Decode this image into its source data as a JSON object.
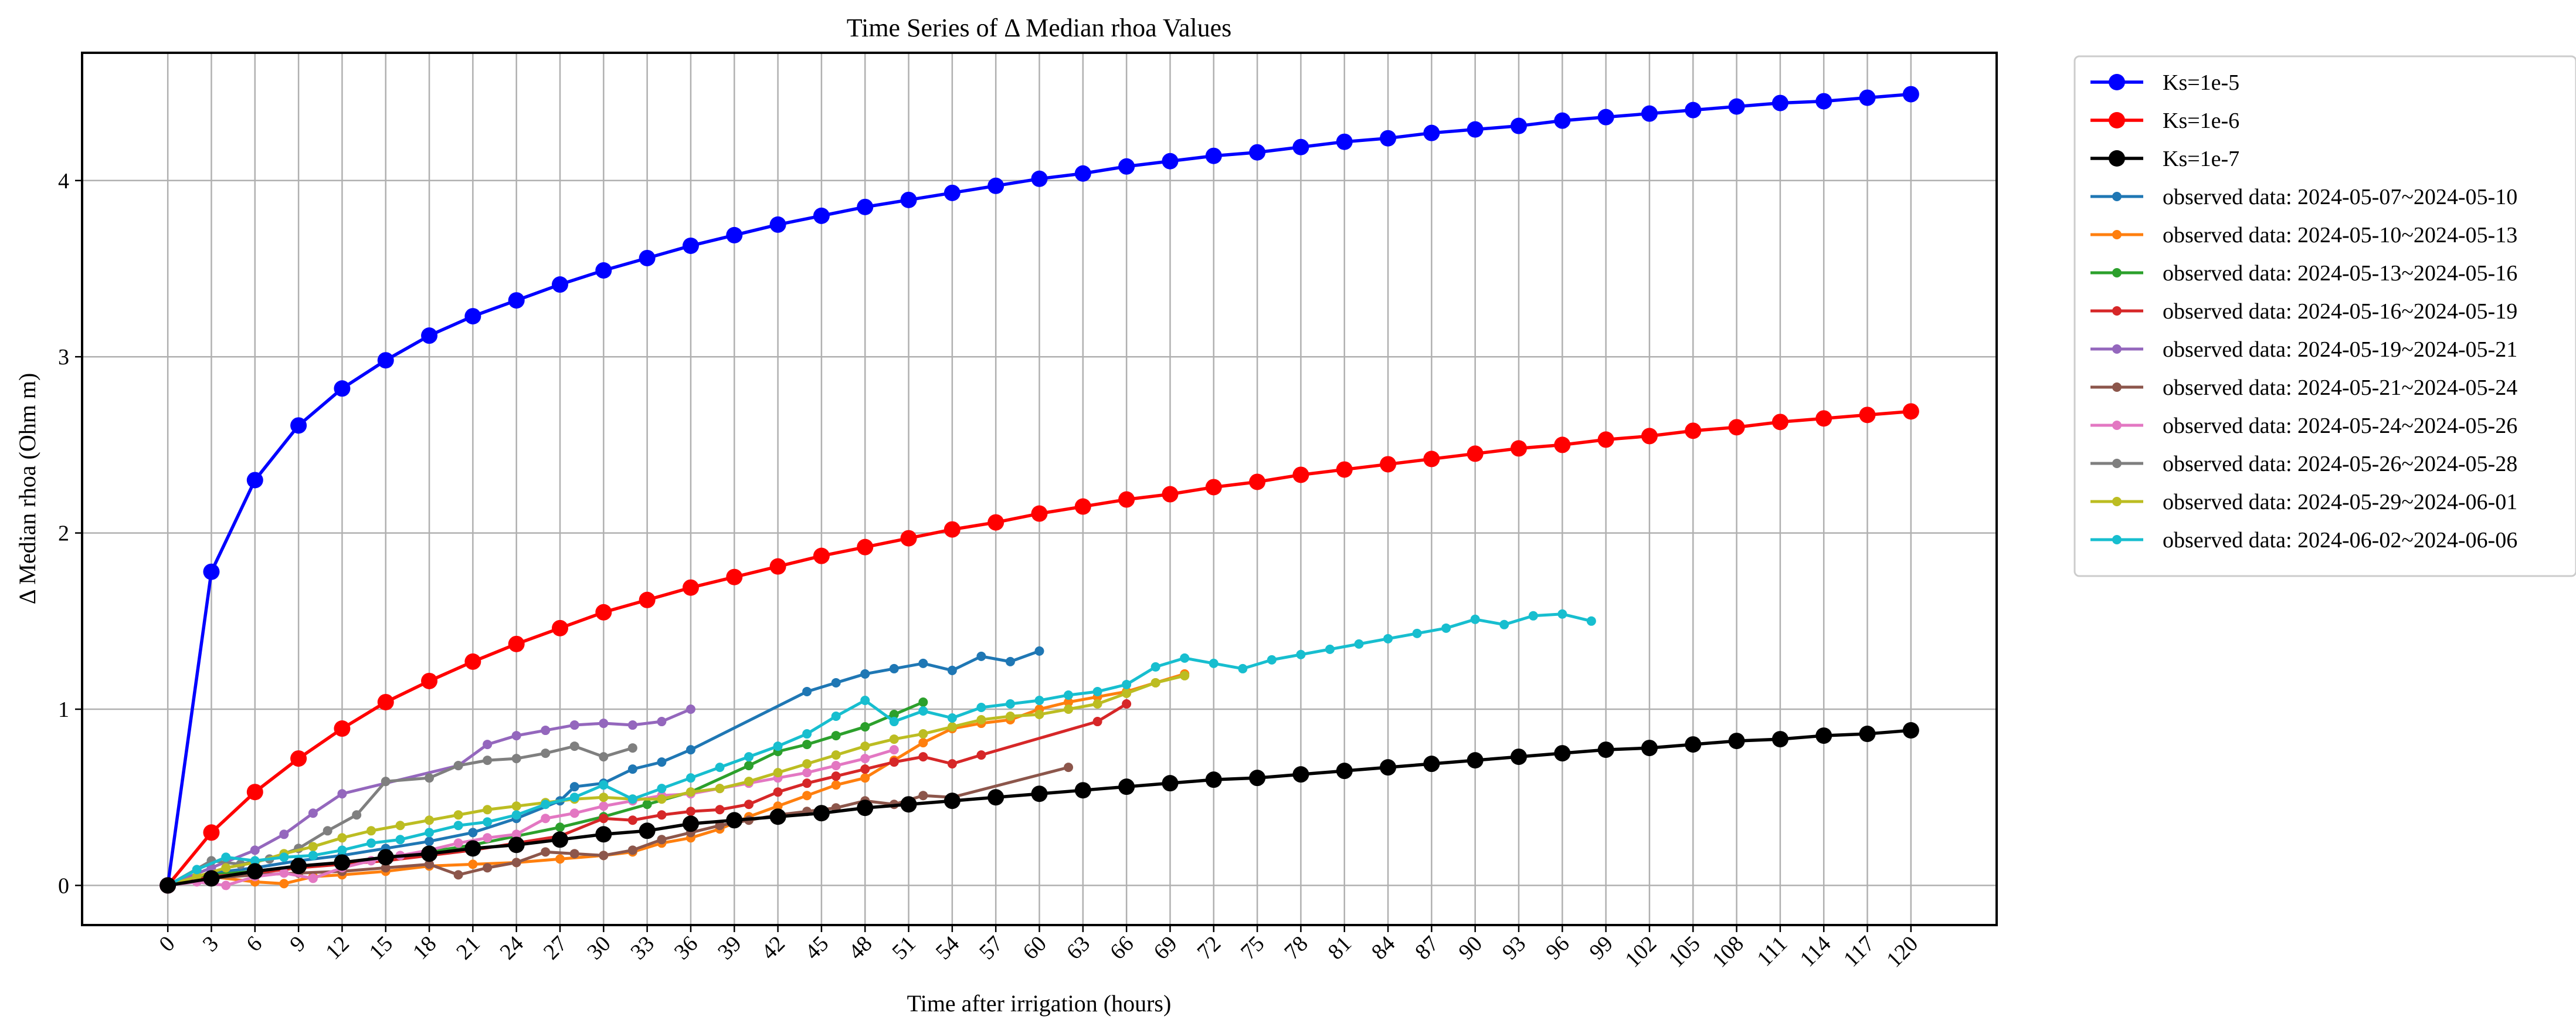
{
  "chart_data": {
    "type": "line",
    "title": "Time Series of Δ Median rhoa Values",
    "xlabel": "Time after irrigation (hours)",
    "ylabel": "Δ Median rhoa (Ohm m)",
    "xlim": [
      -5.9,
      125.9
    ],
    "ylim": [
      -0.225,
      4.725
    ],
    "xticks": [
      0,
      3,
      6,
      9,
      12,
      15,
      18,
      21,
      24,
      27,
      30,
      33,
      36,
      39,
      42,
      45,
      48,
      51,
      54,
      57,
      60,
      63,
      66,
      69,
      72,
      75,
      78,
      81,
      84,
      87,
      90,
      93,
      96,
      99,
      102,
      105,
      108,
      111,
      114,
      117,
      120
    ],
    "yticks": [
      0,
      1,
      2,
      3,
      4
    ],
    "grid": true,
    "legend_placement": "outside upper right",
    "series": [
      {
        "name": "Ks=1e-5",
        "color": "#0000ff",
        "marker": "large",
        "x": [
          0,
          3,
          6,
          9,
          12,
          15,
          18,
          21,
          24,
          27,
          30,
          33,
          36,
          39,
          42,
          45,
          48,
          51,
          54,
          57,
          60,
          63,
          66,
          69,
          72,
          75,
          78,
          81,
          84,
          87,
          90,
          93,
          96,
          99,
          102,
          105,
          108,
          111,
          114,
          117,
          120
        ],
        "y": [
          0,
          1.78,
          2.3,
          2.61,
          2.82,
          2.98,
          3.12,
          3.23,
          3.32,
          3.41,
          3.49,
          3.56,
          3.63,
          3.69,
          3.75,
          3.8,
          3.85,
          3.89,
          3.93,
          3.97,
          4.01,
          4.04,
          4.08,
          4.11,
          4.14,
          4.16,
          4.19,
          4.22,
          4.24,
          4.27,
          4.29,
          4.31,
          4.34,
          4.36,
          4.38,
          4.4,
          4.42,
          4.44,
          4.45,
          4.47,
          4.49
        ]
      },
      {
        "name": "Ks=1e-6",
        "color": "#ff0000",
        "marker": "large",
        "x": [
          0,
          3,
          6,
          9,
          12,
          15,
          18,
          21,
          24,
          27,
          30,
          33,
          36,
          39,
          42,
          45,
          48,
          51,
          54,
          57,
          60,
          63,
          66,
          69,
          72,
          75,
          78,
          81,
          84,
          87,
          90,
          93,
          96,
          99,
          102,
          105,
          108,
          111,
          114,
          117,
          120
        ],
        "y": [
          0,
          0.3,
          0.53,
          0.72,
          0.89,
          1.04,
          1.16,
          1.27,
          1.37,
          1.46,
          1.55,
          1.62,
          1.69,
          1.75,
          1.81,
          1.87,
          1.92,
          1.97,
          2.02,
          2.06,
          2.11,
          2.15,
          2.19,
          2.22,
          2.26,
          2.29,
          2.33,
          2.36,
          2.39,
          2.42,
          2.45,
          2.48,
          2.5,
          2.53,
          2.55,
          2.58,
          2.6,
          2.63,
          2.65,
          2.67,
          2.69
        ]
      },
      {
        "name": "Ks=1e-7",
        "color": "#000000",
        "marker": "large",
        "x": [
          0,
          3,
          6,
          9,
          12,
          15,
          18,
          21,
          24,
          27,
          30,
          33,
          36,
          39,
          42,
          45,
          48,
          51,
          54,
          57,
          60,
          63,
          66,
          69,
          72,
          75,
          78,
          81,
          84,
          87,
          90,
          93,
          96,
          99,
          102,
          105,
          108,
          111,
          114,
          117,
          120
        ],
        "y": [
          0,
          0.04,
          0.08,
          0.11,
          0.13,
          0.16,
          0.18,
          0.21,
          0.23,
          0.26,
          0.29,
          0.31,
          0.35,
          0.37,
          0.39,
          0.41,
          0.44,
          0.46,
          0.48,
          0.5,
          0.52,
          0.54,
          0.56,
          0.58,
          0.6,
          0.61,
          0.63,
          0.65,
          0.67,
          0.69,
          0.71,
          0.73,
          0.75,
          0.77,
          0.78,
          0.8,
          0.82,
          0.83,
          0.85,
          0.86,
          0.88
        ]
      },
      {
        "name": "observed data: 2024-05-07~2024-05-10",
        "color": "#1f77b4",
        "marker": "small",
        "x": [
          0,
          3,
          6,
          9,
          12,
          15,
          18,
          21,
          24,
          27,
          28,
          30,
          32,
          34,
          36,
          44,
          46,
          48,
          50,
          52,
          54,
          56,
          58,
          60
        ],
        "y": [
          0,
          0.07,
          0.1,
          0.14,
          0.17,
          0.21,
          0.25,
          0.3,
          0.38,
          0.48,
          0.56,
          0.58,
          0.66,
          0.7,
          0.77,
          1.1,
          1.15,
          1.2,
          1.23,
          1.26,
          1.22,
          1.3,
          1.27,
          1.33
        ]
      },
      {
        "name": "observed data: 2024-05-10~2024-05-13",
        "color": "#ff7f0e",
        "marker": "small",
        "x": [
          0,
          3,
          6,
          8,
          10,
          12,
          15,
          18,
          21,
          24,
          27,
          30,
          32,
          34,
          36,
          38,
          40,
          42,
          44,
          46,
          48,
          50,
          52,
          54,
          56,
          58,
          60,
          62,
          64,
          66,
          68,
          70
        ],
        "y": [
          0,
          0.05,
          0.02,
          0.01,
          0.05,
          0.06,
          0.08,
          0.11,
          0.12,
          0.13,
          0.15,
          0.17,
          0.19,
          0.24,
          0.27,
          0.32,
          0.39,
          0.45,
          0.51,
          0.57,
          0.61,
          0.71,
          0.81,
          0.89,
          0.92,
          0.94,
          1.0,
          1.04,
          1.07,
          1.1,
          1.15,
          1.2
        ]
      },
      {
        "name": "observed data: 2024-05-13~2024-05-16",
        "color": "#2ca02c",
        "marker": "small",
        "x": [
          0,
          3,
          6,
          9,
          12,
          15,
          18,
          21,
          24,
          27,
          30,
          33,
          36,
          40,
          42,
          44,
          46,
          48,
          50,
          52
        ],
        "y": [
          0,
          0.06,
          0.08,
          0.1,
          0.13,
          0.16,
          0.19,
          0.23,
          0.28,
          0.33,
          0.39,
          0.46,
          0.53,
          0.68,
          0.76,
          0.8,
          0.85,
          0.9,
          0.97,
          1.04
        ]
      },
      {
        "name": "observed data: 2024-05-16~2024-05-19",
        "color": "#d62728",
        "marker": "small",
        "x": [
          0,
          3,
          6,
          9,
          12,
          15,
          18,
          21,
          24,
          27,
          30,
          32,
          34,
          36,
          38,
          40,
          42,
          44,
          46,
          48,
          50,
          52,
          54,
          56,
          64,
          66
        ],
        "y": [
          0,
          0.05,
          0.07,
          0.1,
          0.12,
          0.14,
          0.17,
          0.2,
          0.24,
          0.28,
          0.38,
          0.37,
          0.4,
          0.42,
          0.43,
          0.46,
          0.53,
          0.58,
          0.62,
          0.66,
          0.7,
          0.73,
          0.69,
          0.74,
          0.93,
          1.03
        ]
      },
      {
        "name": "observed data: 2024-05-19~2024-05-21",
        "color": "#9467bd",
        "marker": "small",
        "x": [
          0,
          3,
          6,
          8,
          10,
          12,
          20,
          22,
          24,
          26,
          28,
          30,
          32,
          34,
          36
        ],
        "y": [
          0,
          0.1,
          0.2,
          0.29,
          0.41,
          0.52,
          0.68,
          0.8,
          0.85,
          0.88,
          0.91,
          0.92,
          0.91,
          0.93,
          1.0
        ]
      },
      {
        "name": "observed data: 2024-05-21~2024-05-24",
        "color": "#8c564b",
        "marker": "small",
        "x": [
          0,
          3,
          6,
          9,
          12,
          15,
          18,
          20,
          22,
          24,
          26,
          28,
          30,
          32,
          34,
          36,
          38,
          40,
          42,
          44,
          46,
          48,
          50,
          52,
          54,
          62
        ],
        "y": [
          0,
          0.04,
          0.06,
          0.07,
          0.08,
          0.1,
          0.12,
          0.06,
          0.1,
          0.13,
          0.19,
          0.18,
          0.17,
          0.2,
          0.26,
          0.3,
          0.34,
          0.37,
          0.4,
          0.42,
          0.44,
          0.48,
          0.46,
          0.51,
          0.5,
          0.67
        ]
      },
      {
        "name": "observed data: 2024-05-24~2024-05-26",
        "color": "#e377c2",
        "marker": "small",
        "x": [
          0,
          2,
          4,
          6,
          8,
          10,
          12,
          14,
          16,
          18,
          20,
          22,
          24,
          26,
          28,
          30,
          32,
          34,
          36,
          38,
          40,
          42,
          44,
          46,
          48,
          50
        ],
        "y": [
          0,
          0.02,
          0.0,
          0.05,
          0.07,
          0.04,
          0.1,
          0.14,
          0.17,
          0.2,
          0.24,
          0.27,
          0.29,
          0.38,
          0.41,
          0.45,
          0.48,
          0.51,
          0.52,
          0.55,
          0.58,
          0.61,
          0.64,
          0.68,
          0.72,
          0.77
        ]
      },
      {
        "name": "observed data: 2024-05-26~2024-05-28",
        "color": "#7f7f7f",
        "marker": "small",
        "x": [
          0,
          3,
          5,
          7,
          9,
          11,
          13,
          15,
          18,
          20,
          22,
          24,
          26,
          28,
          30,
          32
        ],
        "y": [
          0,
          0.14,
          0.12,
          0.15,
          0.21,
          0.31,
          0.4,
          0.59,
          0.61,
          0.68,
          0.71,
          0.72,
          0.75,
          0.79,
          0.73,
          0.78
        ]
      },
      {
        "name": "observed data: 2024-05-29~2024-06-01",
        "color": "#bcbd22",
        "marker": "small",
        "x": [
          0,
          2,
          4,
          6,
          8,
          10,
          12,
          14,
          16,
          18,
          20,
          22,
          24,
          26,
          28,
          30,
          32,
          34,
          36,
          38,
          40,
          42,
          44,
          46,
          48,
          50,
          52,
          54,
          56,
          58,
          60,
          62,
          64,
          66,
          68,
          70
        ],
        "y": [
          0,
          0.05,
          0.1,
          0.13,
          0.18,
          0.22,
          0.27,
          0.31,
          0.34,
          0.37,
          0.4,
          0.43,
          0.45,
          0.47,
          0.49,
          0.5,
          0.49,
          0.49,
          0.53,
          0.55,
          0.59,
          0.64,
          0.69,
          0.74,
          0.79,
          0.83,
          0.86,
          0.9,
          0.94,
          0.96,
          0.97,
          1.0,
          1.03,
          1.09,
          1.15,
          1.19
        ]
      },
      {
        "name": "observed data: 2024-06-02~2024-06-06",
        "color": "#17becf",
        "marker": "small",
        "x": [
          0,
          2,
          4,
          6,
          8,
          10,
          12,
          14,
          16,
          18,
          20,
          22,
          24,
          26,
          28,
          30,
          32,
          34,
          36,
          38,
          40,
          42,
          44,
          46,
          48,
          50,
          52,
          54,
          56,
          58,
          60,
          62,
          64,
          66,
          68,
          70,
          72,
          74,
          76,
          78,
          80,
          82,
          84,
          86,
          88,
          90,
          92,
          94,
          96,
          98
        ],
        "y": [
          0,
          0.09,
          0.16,
          0.14,
          0.16,
          0.17,
          0.2,
          0.24,
          0.26,
          0.3,
          0.34,
          0.36,
          0.4,
          0.46,
          0.5,
          0.57,
          0.49,
          0.55,
          0.61,
          0.67,
          0.73,
          0.79,
          0.86,
          0.96,
          1.05,
          0.93,
          0.99,
          0.95,
          1.01,
          1.03,
          1.05,
          1.08,
          1.1,
          1.14,
          1.24,
          1.29,
          1.26,
          1.23,
          1.28,
          1.31,
          1.34,
          1.37,
          1.4,
          1.43,
          1.46,
          1.51,
          1.48,
          1.53,
          1.54,
          1.5
        ]
      }
    ]
  }
}
